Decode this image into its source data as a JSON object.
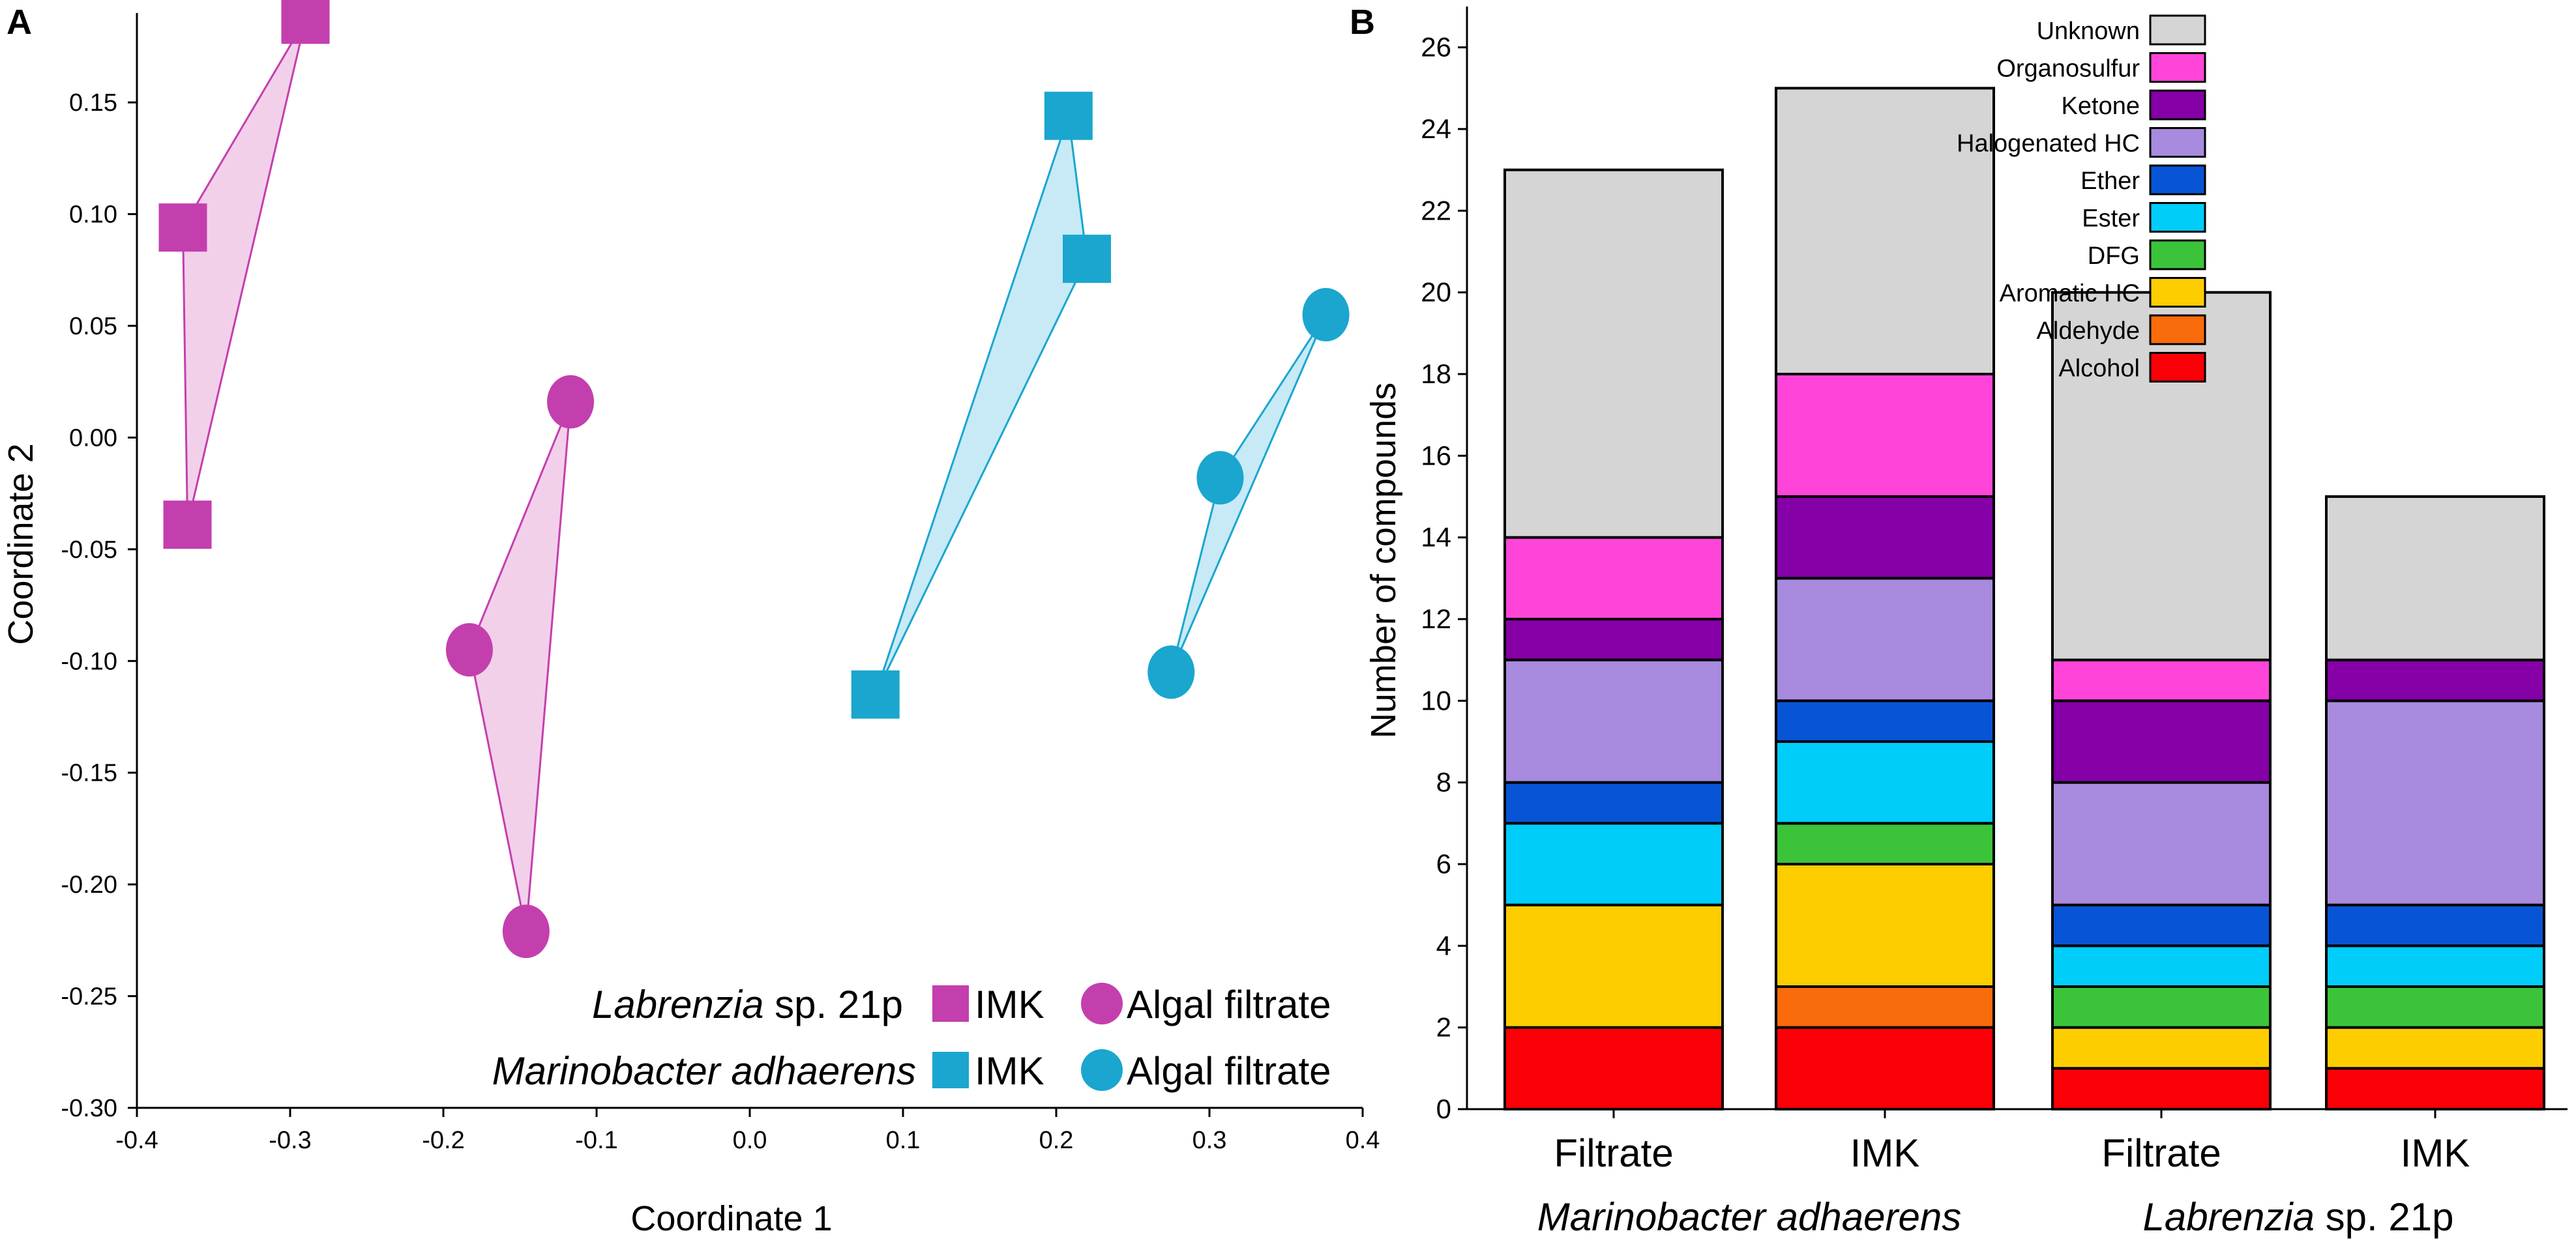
{
  "chart_data": [
    {
      "panel_label": "A",
      "type": "scatter",
      "xlabel": "Coordinate 1",
      "ylabel": "Coordinate 2",
      "xlim": [
        -0.4,
        0.4
      ],
      "ylim": [
        -0.3,
        0.19
      ],
      "xticks": [
        -0.4,
        -0.3,
        -0.2,
        -0.1,
        0.0,
        0.1,
        0.2,
        0.3,
        0.4
      ],
      "xtick_labels": [
        "-0.4",
        "-0.3",
        "-0.2",
        "-0.1",
        "0.0",
        "0.1",
        "0.2",
        "0.3",
        "0.4"
      ],
      "yticks": [
        -0.3,
        -0.25,
        -0.2,
        -0.15,
        -0.1,
        -0.05,
        0.0,
        0.05,
        0.1,
        0.15
      ],
      "ytick_labels": [
        "-0.30",
        "-0.25",
        "-0.20",
        "-0.15",
        "-0.10",
        "-0.05",
        "0.00",
        "0.05",
        "0.10",
        "0.15"
      ],
      "series": [
        {
          "id": "lab-imk",
          "organism": "Labrenzia sp. 21p",
          "condition": "IMK",
          "marker": "square",
          "color": "#c43fae",
          "fill": "#f0c8e6",
          "points": [
            [
              -0.29,
              0.187
            ],
            [
              -0.37,
              0.094
            ],
            [
              -0.367,
              -0.039
            ]
          ]
        },
        {
          "id": "lab-filtrate",
          "organism": "Labrenzia sp. 21p",
          "condition": "Algal filtrate",
          "marker": "circle",
          "color": "#c43fae",
          "fill": "#f0c8e6",
          "points": [
            [
              -0.117,
              0.016
            ],
            [
              -0.183,
              -0.095
            ],
            [
              -0.146,
              -0.221
            ]
          ]
        },
        {
          "id": "mar-imk",
          "organism": "Marinobacter adhaerens",
          "condition": "IMK",
          "marker": "square",
          "color": "#1aa6cf",
          "fill": "#bde6f4",
          "points": [
            [
              0.208,
              0.144
            ],
            [
              0.22,
              0.08
            ],
            [
              0.082,
              -0.115
            ]
          ]
        },
        {
          "id": "mar-filtrate",
          "organism": "Marinobacter adhaerens",
          "condition": "Algal filtrate",
          "marker": "circle",
          "color": "#1aa6cf",
          "fill": "#bde6f4",
          "points": [
            [
              0.376,
              0.055
            ],
            [
              0.307,
              -0.018
            ],
            [
              0.275,
              -0.105
            ]
          ]
        }
      ],
      "legend": {
        "position": "bottom-right",
        "rows": [
          {
            "organism_italic": "Labrenzia",
            "organism_rest": " sp. 21p",
            "color": "#c43fae",
            "imk_label": "IMK",
            "filtrate_label": "Algal filtrate"
          },
          {
            "organism_italic": "Marinobacter adhaerens",
            "organism_rest": "",
            "color": "#1aa6cf",
            "imk_label": "IMK",
            "filtrate_label": "Algal filtrate"
          }
        ]
      }
    },
    {
      "panel_label": "B",
      "type": "bar",
      "stacked": true,
      "ylabel": "Number of compounds",
      "ylim": [
        0,
        27
      ],
      "yticks": [
        0,
        2,
        4,
        6,
        8,
        10,
        12,
        14,
        16,
        18,
        20,
        22,
        24,
        26
      ],
      "categories": [
        "Filtrate",
        "IMK",
        "Filtrate",
        "IMK"
      ],
      "groups": [
        {
          "label_italic": "Marinobacter adhaerens",
          "label_rest": "",
          "categories": [
            0,
            1
          ]
        },
        {
          "label_italic": "Labrenzia",
          "label_rest": " sp. 21p",
          "categories": [
            2,
            3
          ]
        }
      ],
      "series": [
        {
          "name": "Alcohol",
          "color": "#fb0007",
          "values": [
            2,
            2,
            1,
            1
          ]
        },
        {
          "name": "Aldehyde",
          "color": "#fa6b0c",
          "values": [
            0,
            1,
            0,
            0
          ]
        },
        {
          "name": "Aromatic HC",
          "color": "#fdcd00",
          "values": [
            3,
            3,
            1,
            1
          ]
        },
        {
          "name": "DFG",
          "color": "#3bc43a",
          "values": [
            0,
            1,
            1,
            1
          ]
        },
        {
          "name": "Ester",
          "color": "#00cdf9",
          "values": [
            2,
            2,
            1,
            1
          ]
        },
        {
          "name": "Ether",
          "color": "#0755d6",
          "values": [
            1,
            1,
            1,
            1
          ]
        },
        {
          "name": "Halogenated HC",
          "color": "#a88ade",
          "values": [
            3,
            3,
            3,
            5
          ]
        },
        {
          "name": "Ketone",
          "color": "#8500a6",
          "values": [
            1,
            2,
            2,
            1
          ]
        },
        {
          "name": "Organosulfur",
          "color": "#ff45d9",
          "values": [
            2,
            3,
            1,
            0
          ]
        },
        {
          "name": "Unknown",
          "color": "#d5d5d5",
          "values": [
            9,
            7,
            9,
            4
          ]
        }
      ],
      "legend": {
        "position": "top-right",
        "order": [
          "Unknown",
          "Organosulfur",
          "Ketone",
          "Halogenated HC",
          "Ether",
          "Ester",
          "DFG",
          "Aromatic HC",
          "Aldehyde",
          "Alcohol"
        ]
      }
    }
  ]
}
